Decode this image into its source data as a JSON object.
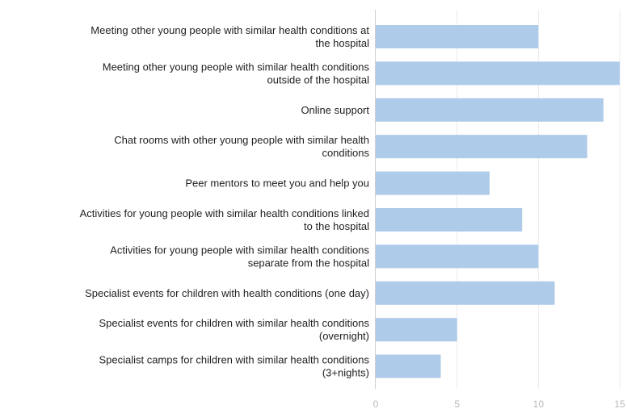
{
  "chart_data": {
    "type": "bar",
    "orientation": "horizontal",
    "categories": [
      [
        "Meeting other young people with similar health conditions at",
        "the hospital"
      ],
      [
        "Meeting other young people with similar health conditions",
        "outside of the hospital"
      ],
      [
        "Online support"
      ],
      [
        "Chat rooms with other young people with similar health",
        "conditions"
      ],
      [
        "Peer mentors to meet you and help you"
      ],
      [
        "Activities for young people with similar health conditions linked",
        "to the hospital"
      ],
      [
        "Activities for young people with similar health conditions",
        "separate from the hospital"
      ],
      [
        "Specialist events for children with health conditions (one day)"
      ],
      [
        "Specialist events for children with similar health conditions",
        "(overnight)"
      ],
      [
        "Specialist camps for children with similar health conditions",
        "(3+nights)"
      ]
    ],
    "values": [
      10,
      15,
      14,
      13,
      7,
      9,
      10,
      11,
      5,
      4
    ],
    "xlim": [
      0,
      15
    ],
    "xticks": [
      "0",
      "5",
      "10",
      "15"
    ],
    "grid": true,
    "legend": "none",
    "title": "",
    "xlabel": "",
    "ylabel": "",
    "colors": {
      "bar": "#aecbe9",
      "grid": "#ebebeb",
      "axis": "#cfcfcf",
      "text": "#222222",
      "tick": "#b9b9b9"
    }
  }
}
